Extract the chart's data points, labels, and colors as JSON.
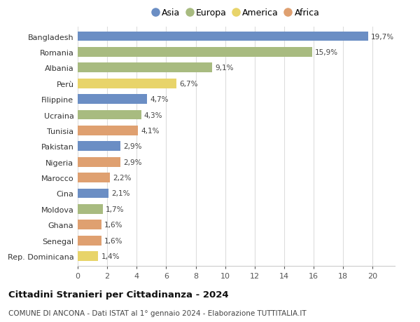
{
  "categories": [
    "Bangladesh",
    "Romania",
    "Albania",
    "Perù",
    "Filippine",
    "Ucraina",
    "Tunisia",
    "Pakistan",
    "Nigeria",
    "Marocco",
    "Cina",
    "Moldova",
    "Ghana",
    "Senegal",
    "Rep. Dominicana"
  ],
  "values": [
    19.7,
    15.9,
    9.1,
    6.7,
    4.7,
    4.3,
    4.1,
    2.9,
    2.9,
    2.2,
    2.1,
    1.7,
    1.6,
    1.6,
    1.4
  ],
  "labels": [
    "19,7%",
    "15,9%",
    "9,1%",
    "6,7%",
    "4,7%",
    "4,3%",
    "4,1%",
    "2,9%",
    "2,9%",
    "2,2%",
    "2,1%",
    "1,7%",
    "1,6%",
    "1,6%",
    "1,4%"
  ],
  "continents": [
    "Asia",
    "Europa",
    "Europa",
    "America",
    "Asia",
    "Europa",
    "Africa",
    "Asia",
    "Africa",
    "Africa",
    "Asia",
    "Europa",
    "Africa",
    "Africa",
    "America"
  ],
  "continent_colors": {
    "Asia": "#6b8ec4",
    "Europa": "#a8bb80",
    "America": "#e8d46a",
    "Africa": "#dfa070"
  },
  "legend_order": [
    "Asia",
    "Europa",
    "America",
    "Africa"
  ],
  "title": "Cittadini Stranieri per Cittadinanza - 2024",
  "subtitle": "COMUNE DI ANCONA - Dati ISTAT al 1° gennaio 2024 - Elaborazione TUTTITALIA.IT",
  "xlim": [
    0,
    21.5
  ],
  "xticks": [
    0,
    2,
    4,
    6,
    8,
    10,
    12,
    14,
    16,
    18,
    20
  ],
  "background_color": "#ffffff",
  "grid_color": "#dddddd",
  "bar_height": 0.62
}
